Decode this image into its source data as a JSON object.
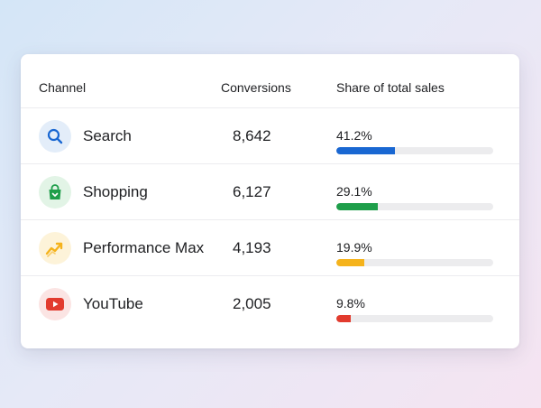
{
  "header": {
    "channel": "Channel",
    "conversions": "Conversions",
    "share": "Share of total sales"
  },
  "rows": [
    {
      "name": "Search",
      "conversions": "8,642",
      "share_label": "41.2%",
      "share": 0.412,
      "color": "#1967d2",
      "icon_bg": "#e3edf9",
      "icon": "search-icon"
    },
    {
      "name": "Shopping",
      "conversions": "6,127",
      "share_label": "29.1%",
      "share": 0.291,
      "color": "#1e9e4a",
      "icon_bg": "#e2f4e6",
      "icon": "shopping-bag-icon"
    },
    {
      "name": "Performance Max",
      "conversions": "4,193",
      "share_label": "19.9%",
      "share": 0.199,
      "color": "#f5b31c",
      "icon_bg": "#fdf3d9",
      "icon": "trending-up-icon"
    },
    {
      "name": "YouTube",
      "conversions": "2,005",
      "share_label": "9.8%",
      "share": 0.098,
      "color": "#e23b2e",
      "icon_bg": "#fbe4e3",
      "icon": "youtube-icon"
    }
  ]
}
